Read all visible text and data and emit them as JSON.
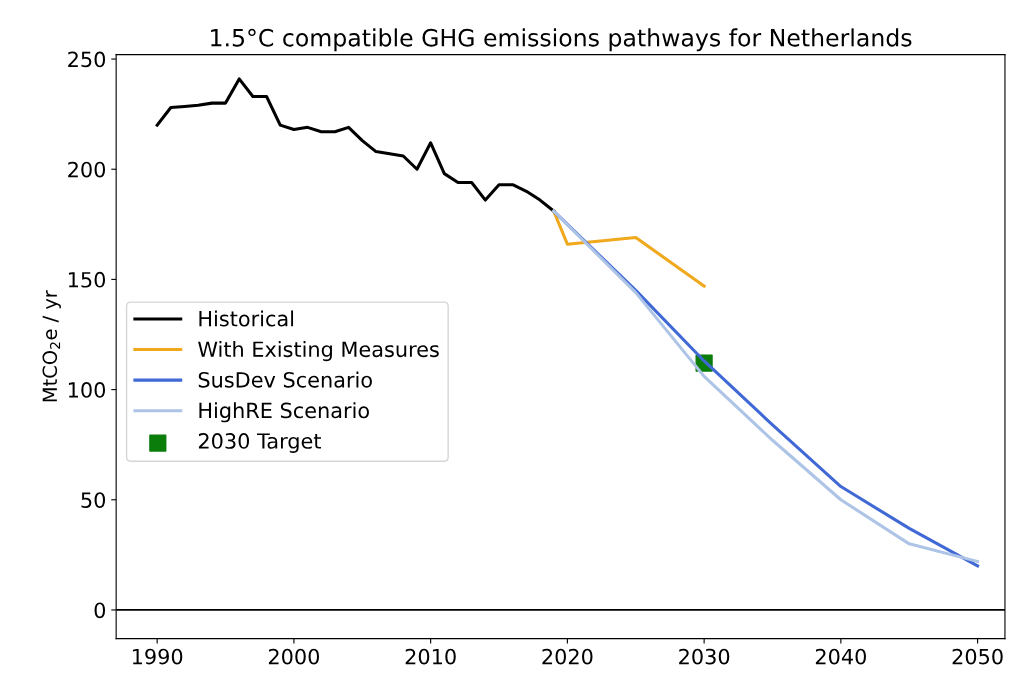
{
  "chart_data": {
    "type": "line",
    "title": "1.5°C compatible GHG emissions pathways for Netherlands",
    "ylabel": "MtCO$_{2}$e / yr",
    "xlim": [
      1987,
      2052
    ],
    "xticks": [
      1990,
      2000,
      2010,
      2020,
      2030,
      2040,
      2050
    ],
    "ylim": [
      -13,
      252
    ],
    "yticks": [
      0,
      50,
      100,
      150,
      200,
      250
    ],
    "grid": false,
    "legend": "left",
    "marker": "none",
    "line_style": "solid",
    "ref_lines": [
      {
        "axis": "y",
        "value": 0,
        "color": "#000000",
        "line_style": "solid"
      }
    ],
    "series": [
      {
        "name": "Historical",
        "color": "#000000",
        "x": [
          1990,
          1991,
          1992,
          1993,
          1994,
          1995,
          1996,
          1997,
          1998,
          1999,
          2000,
          2001,
          2002,
          2003,
          2004,
          2005,
          2006,
          2007,
          2008,
          2009,
          2010,
          2011,
          2012,
          2013,
          2014,
          2015,
          2016,
          2017,
          2018,
          2019
        ],
        "values": [
          220,
          228,
          228.5,
          229,
          230,
          230,
          241,
          233,
          233,
          220,
          218,
          219,
          217,
          217,
          219,
          213,
          208,
          207,
          206,
          200,
          212,
          198,
          194,
          194,
          186,
          193,
          193,
          190,
          186,
          181
        ]
      },
      {
        "name": "With Existing Measures",
        "color": "#f0a81c",
        "x": [
          2019,
          2020,
          2025,
          2030
        ],
        "values": [
          181,
          166,
          169,
          147
        ]
      },
      {
        "name": "SusDev Scenario",
        "color": "#4169d6",
        "x": [
          2019,
          2025,
          2030,
          2035,
          2040,
          2045,
          2050
        ],
        "values": [
          181,
          145,
          113,
          84,
          56,
          37,
          20
        ]
      },
      {
        "name": "HighRE Scenario",
        "color": "#adc4e6",
        "x": [
          2019,
          2025,
          2030,
          2035,
          2040,
          2045,
          2050
        ],
        "values": [
          181,
          144,
          106,
          77,
          50,
          30,
          22
        ]
      },
      {
        "name": "2030 Target",
        "type": "scatter",
        "marker": "square",
        "color": "#0a7d0a",
        "x": [
          2030
        ],
        "values": [
          112
        ]
      }
    ]
  }
}
